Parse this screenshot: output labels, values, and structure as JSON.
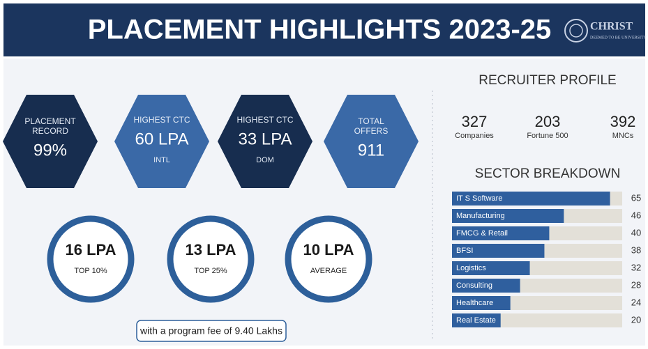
{
  "header": {
    "title": "PLACEMENT HIGHLIGHTS 2023-25",
    "logo": {
      "name": "CHRIST",
      "subtitle": "DEEMED TO BE UNIVERSITY"
    }
  },
  "highlights": [
    {
      "label": [
        "PLACEMENT",
        "RECORD"
      ],
      "value": "99%"
    },
    {
      "label": [
        "HIGHEST CTC"
      ],
      "value": "60 LPA",
      "note": "INTL"
    },
    {
      "label": [
        "HIGHEST CTC"
      ],
      "value": "33 LPA",
      "note": "DOM"
    },
    {
      "label": [
        "TOTAL",
        "OFFERS"
      ],
      "value": "911"
    }
  ],
  "salaries": [
    {
      "value": "16 LPA",
      "label": "TOP 10%"
    },
    {
      "value": "13 LPA",
      "label": "TOP 25%"
    },
    {
      "value": "10 LPA",
      "label": "AVERAGE"
    }
  ],
  "fee_note": "with a program fee of 9.40 Lakhs",
  "recruiter_profile": {
    "title": "RECRUITER PROFILE",
    "stats": [
      {
        "value": 327,
        "label": "Companies"
      },
      {
        "value": 203,
        "label": "Fortune 500"
      },
      {
        "value": 392,
        "label": "MNCs"
      }
    ]
  },
  "chart_data": {
    "type": "bar",
    "title": "SECTOR BREAKDOWN",
    "categories": [
      "IT S Software",
      "Manufacturing",
      "FMCG & Retail",
      "BFSI",
      "Logistics",
      "Consulting",
      "Healthcare",
      "Real Estate"
    ],
    "values": [
      65,
      46,
      40,
      38,
      32,
      28,
      24,
      20
    ],
    "xlim": [
      0,
      70
    ],
    "color": "#2f5f9e"
  }
}
